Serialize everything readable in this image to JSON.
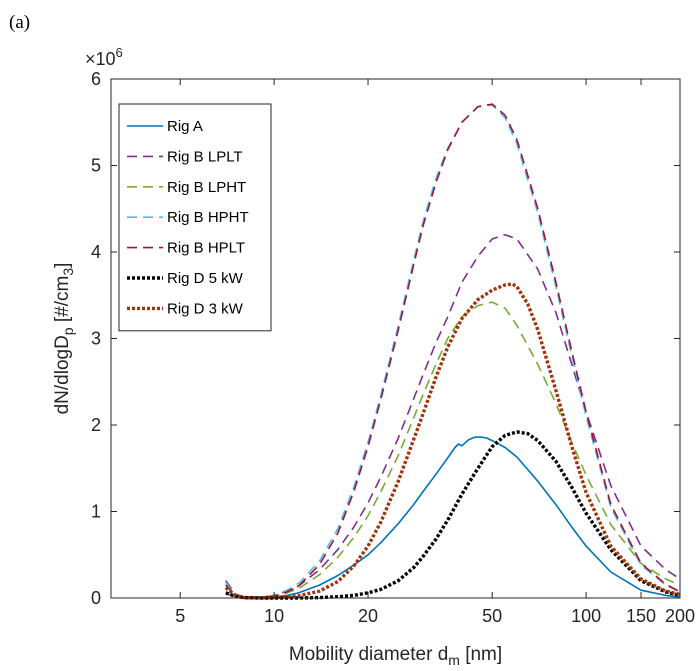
{
  "panel_label": "(a)",
  "chart_data": {
    "type": "line",
    "x_scale": "log",
    "xlim": [
      3,
      200
    ],
    "ylim": [
      0,
      6000000
    ],
    "y_exponent_label": "×10",
    "y_exponent_power": "6",
    "xlabel_main": "Mobility diameter d",
    "xlabel_sub": "m",
    "xlabel_tail": " [nm]",
    "ylabel_main": "dN/dlogD",
    "ylabel_sub": "p",
    "ylabel_tail": " [#/cm",
    "ylabel_sub2": "3",
    "ylabel_end": "]",
    "x_ticks": [
      5,
      10,
      20,
      50,
      100,
      150,
      200
    ],
    "x_tick_labels": [
      "5",
      "10",
      "20",
      "50",
      "100",
      "150",
      "200"
    ],
    "y_ticks": [
      0,
      1000000,
      2000000,
      3000000,
      4000000,
      5000000,
      6000000
    ],
    "y_tick_labels": [
      "0",
      "1",
      "2",
      "3",
      "4",
      "5",
      "6"
    ],
    "legend_position": "top-left",
    "series": [
      {
        "name": "Rig A",
        "color": "#0072bd",
        "style": "solid",
        "x": [
          7,
          7.5,
          8,
          9,
          10,
          11,
          12,
          14,
          16,
          18,
          20,
          22,
          25,
          28,
          30,
          33,
          36,
          38,
          39,
          40,
          42,
          44,
          46,
          48,
          50,
          55,
          60,
          70,
          80,
          90,
          100,
          120,
          150,
          180,
          200
        ],
        "y": [
          50000,
          20000,
          5000,
          3000,
          10000,
          30000,
          60000,
          150000,
          260000,
          380000,
          500000,
          640000,
          860000,
          1080000,
          1230000,
          1430000,
          1620000,
          1740000,
          1780000,
          1760000,
          1830000,
          1860000,
          1860000,
          1850000,
          1820000,
          1740000,
          1630000,
          1350000,
          1080000,
          820000,
          600000,
          300000,
          90000,
          30000,
          10000
        ]
      },
      {
        "name": "Rig B LPLT",
        "color": "#7e2f8e",
        "style": "dash",
        "x": [
          7,
          7.5,
          8,
          9,
          10,
          11,
          12,
          14,
          16,
          18,
          20,
          22,
          25,
          28,
          30,
          33,
          36,
          40,
          45,
          50,
          55,
          60,
          70,
          80,
          90,
          100,
          120,
          150,
          180,
          200
        ],
        "y": [
          200000,
          50000,
          10000,
          10000,
          30000,
          80000,
          140000,
          330000,
          560000,
          820000,
          1100000,
          1400000,
          1850000,
          2300000,
          2580000,
          2950000,
          3250000,
          3650000,
          3950000,
          4150000,
          4200000,
          4150000,
          3800000,
          3300000,
          2700000,
          2150000,
          1300000,
          600000,
          330000,
          220000
        ]
      },
      {
        "name": "Rig B LPHT",
        "color": "#77ac30",
        "style": "dash",
        "x": [
          7,
          7.5,
          8,
          9,
          10,
          11,
          12,
          14,
          16,
          18,
          20,
          22,
          25,
          28,
          30,
          33,
          36,
          40,
          45,
          50,
          55,
          60,
          70,
          80,
          90,
          100,
          120,
          150,
          180,
          200
        ],
        "y": [
          150000,
          30000,
          5000,
          5000,
          20000,
          60000,
          110000,
          270000,
          470000,
          700000,
          950000,
          1230000,
          1650000,
          2080000,
          2350000,
          2700000,
          3000000,
          3250000,
          3380000,
          3420000,
          3350000,
          3150000,
          2700000,
          2250000,
          1800000,
          1420000,
          850000,
          400000,
          220000,
          150000
        ]
      },
      {
        "name": "Rig B HPHT",
        "color": "#4dbeee",
        "style": "dash",
        "x": [
          7,
          7.5,
          8,
          9,
          10,
          11,
          12,
          14,
          16,
          18,
          20,
          22,
          25,
          28,
          30,
          33,
          36,
          40,
          45,
          50,
          55,
          60,
          70,
          80,
          90,
          100,
          120,
          150,
          180,
          200
        ],
        "y": [
          180000,
          40000,
          8000,
          10000,
          30000,
          90000,
          170000,
          430000,
          800000,
          1280000,
          1800000,
          2350000,
          3150000,
          3900000,
          4350000,
          4850000,
          5200000,
          5500000,
          5680000,
          5700000,
          5550000,
          5250000,
          4450000,
          3600000,
          2800000,
          2100000,
          1050000,
          380000,
          150000,
          70000
        ]
      },
      {
        "name": "Rig B HPLT",
        "color": "#a2142f",
        "style": "dash",
        "x": [
          7,
          7.5,
          8,
          9,
          10,
          11,
          12,
          14,
          16,
          18,
          20,
          22,
          25,
          28,
          30,
          33,
          36,
          40,
          45,
          50,
          55,
          60,
          70,
          80,
          90,
          100,
          120,
          150,
          180,
          200
        ],
        "y": [
          150000,
          30000,
          5000,
          5000,
          20000,
          70000,
          140000,
          390000,
          750000,
          1230000,
          1750000,
          2300000,
          3100000,
          3850000,
          4300000,
          4800000,
          5180000,
          5500000,
          5680000,
          5710000,
          5580000,
          5300000,
          4500000,
          3650000,
          2850000,
          2150000,
          1080000,
          400000,
          160000,
          70000
        ]
      },
      {
        "name": "Rig D 5 kW",
        "color": "#000000",
        "style": "dot",
        "x": [
          7,
          7.5,
          8,
          9,
          10,
          11,
          12,
          14,
          16,
          18,
          20,
          22,
          25,
          28,
          30,
          33,
          36,
          40,
          45,
          50,
          55,
          60,
          65,
          70,
          80,
          90,
          100,
          120,
          150,
          180,
          200
        ],
        "y": [
          60000,
          20000,
          5000,
          0,
          0,
          0,
          0,
          5000,
          15000,
          30000,
          60000,
          100000,
          200000,
          350000,
          480000,
          680000,
          900000,
          1200000,
          1500000,
          1750000,
          1880000,
          1920000,
          1900000,
          1820000,
          1580000,
          1280000,
          980000,
          560000,
          200000,
          70000,
          30000
        ]
      },
      {
        "name": "Rig D 3 kW",
        "color": "#a0350b",
        "style": "dot",
        "x": [
          7,
          7.5,
          8,
          9,
          10,
          11,
          12,
          14,
          16,
          18,
          20,
          22,
          25,
          28,
          30,
          33,
          36,
          40,
          45,
          50,
          55,
          58,
          60,
          65,
          70,
          80,
          90,
          100,
          120,
          150,
          180,
          200
        ],
        "y": [
          120000,
          30000,
          5000,
          2000,
          5000,
          10000,
          25000,
          80000,
          190000,
          370000,
          600000,
          880000,
          1350000,
          1830000,
          2130000,
          2550000,
          2900000,
          3230000,
          3450000,
          3560000,
          3620000,
          3630000,
          3600000,
          3400000,
          3100000,
          2400000,
          1750000,
          1220000,
          600000,
          220000,
          80000,
          40000
        ]
      }
    ]
  }
}
